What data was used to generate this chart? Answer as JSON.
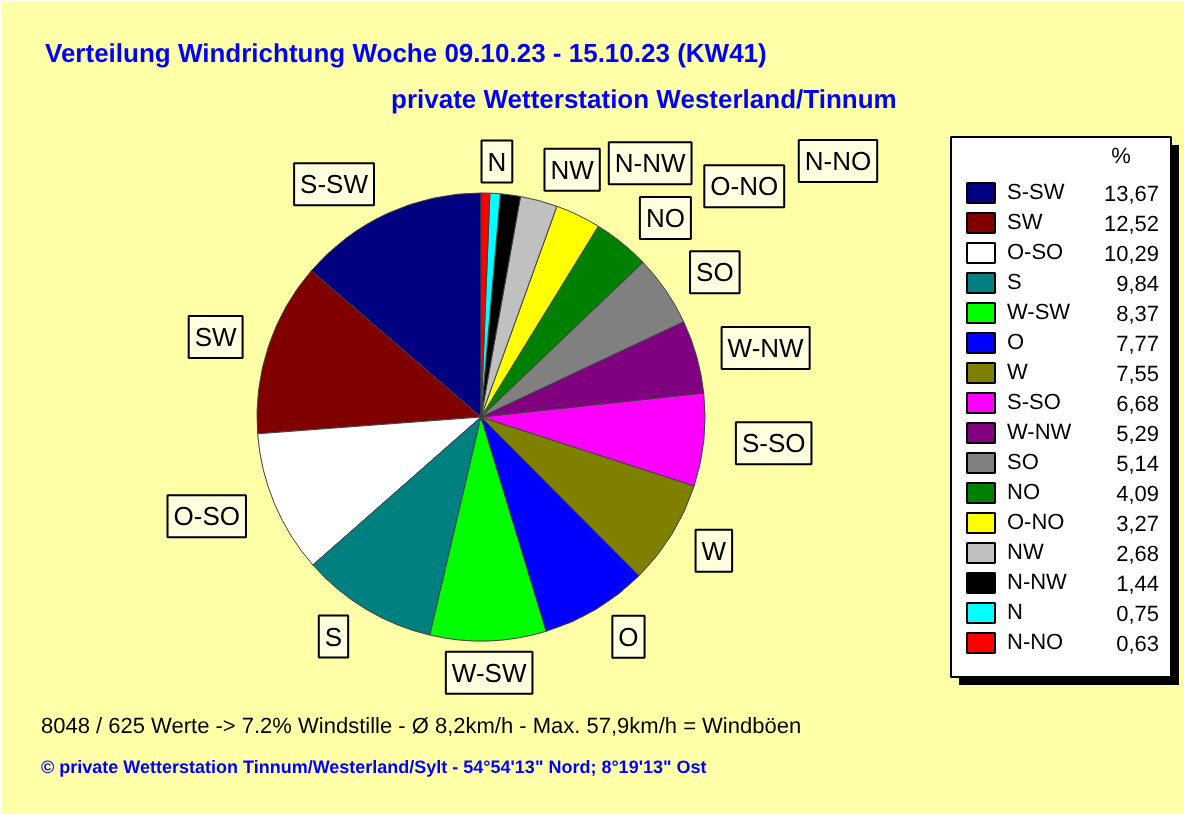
{
  "chart_data": {
    "type": "pie",
    "title": "Verteilung Windrichtung   Woche 09.10.23 - 15.10.23 (KW41)",
    "subtitle": "private Wetterstation Westerland/Tinnum",
    "categories": [
      "S-SW",
      "SW",
      "O-SO",
      "S",
      "W-SW",
      "O",
      "W",
      "S-SO",
      "W-NW",
      "SO",
      "NO",
      "O-NO",
      "NW",
      "N-NW",
      "N",
      "N-NO"
    ],
    "values": [
      13.67,
      12.52,
      10.29,
      9.84,
      8.37,
      7.77,
      7.55,
      6.68,
      5.29,
      5.14,
      4.09,
      3.27,
      2.68,
      1.44,
      0.75,
      0.63
    ],
    "value_labels": [
      "13,67",
      "12,52",
      "10,29",
      "9,84",
      "8,37",
      "7,77",
      "7,55",
      "6,68",
      "5,29",
      "5,14",
      "4,09",
      "3,27",
      "2,68",
      "1,44",
      "0,75",
      "0,63"
    ],
    "colors": [
      "#000080",
      "#800000",
      "#ffffff",
      "#008080",
      "#00ff00",
      "#0000ff",
      "#808000",
      "#ff00ff",
      "#800080",
      "#808080",
      "#008000",
      "#ffff00",
      "#c0c0c0",
      "#000000",
      "#00ffff",
      "#ff0000"
    ],
    "legend_title": "%",
    "legend": "right",
    "annotations": [
      "8048 / 625 Werte  -> 7.2% Windstille   -   Ø 8,2km/h  -  Max. 57,9km/h = Windböen",
      "© private Wetterstation Tinnum/Westerland/Sylt   -   54°54'13\" Nord; 8°19'13\" Ost"
    ]
  }
}
